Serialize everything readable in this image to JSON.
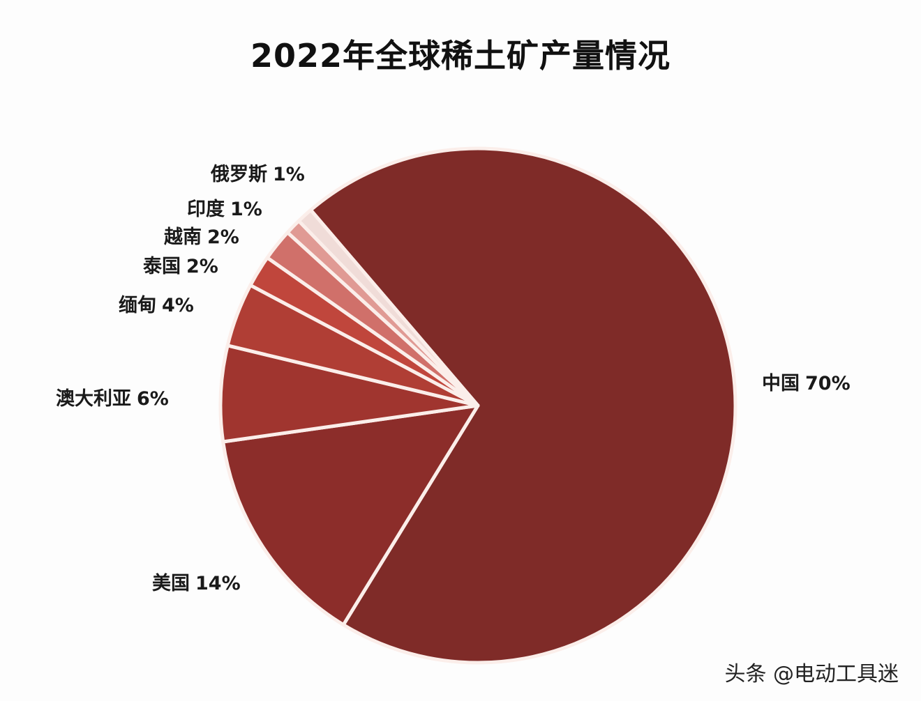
{
  "chart_data": {
    "type": "pie",
    "title": "2022年全球稀土矿产量情况",
    "unit": "%",
    "categories": [
      "中国",
      "美国",
      "澳大利亚",
      "缅甸",
      "泰国",
      "越南",
      "印度",
      "俄罗斯"
    ],
    "values": [
      70,
      14,
      6,
      4,
      2,
      2,
      1,
      1
    ],
    "colors": [
      "#7f2b28",
      "#8c2d2a",
      "#a0352f",
      "#b03e35",
      "#c0463c",
      "#d0706a",
      "#e09a94",
      "#f0dcd8"
    ],
    "legend": "none (data labels beside slices)",
    "start_angle_deg": 319.5,
    "direction": "clockwise"
  },
  "labels": [
    {
      "name": "中国",
      "pct": "70%"
    },
    {
      "name": "美国",
      "pct": "14%"
    },
    {
      "name": "澳大利亚",
      "pct": "6%"
    },
    {
      "name": "缅甸",
      "pct": "4%"
    },
    {
      "name": "泰国",
      "pct": "2%"
    },
    {
      "name": "越南",
      "pct": "2%"
    },
    {
      "name": "印度",
      "pct": "1%"
    },
    {
      "name": "俄罗斯",
      "pct": "1%"
    }
  ],
  "watermark": "头条 @电动工具迷"
}
